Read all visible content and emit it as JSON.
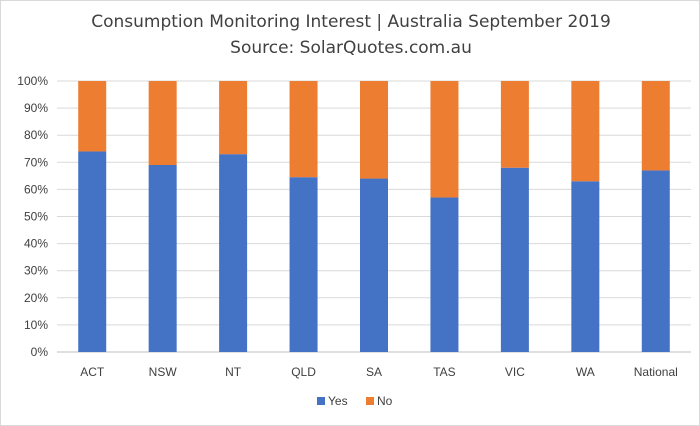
{
  "chart_data": {
    "type": "bar",
    "stacked": true,
    "title": "Consumption Monitoring Interest | Australia September 2019",
    "subtitle": "Source: SolarQuotes.com.au",
    "categories": [
      "ACT",
      "NSW",
      "NT",
      "QLD",
      "SA",
      "TAS",
      "VIC",
      "WA",
      "National"
    ],
    "series": [
      {
        "name": "Yes",
        "color": "#4472c4",
        "values": [
          74,
          69,
          73,
          64.5,
          64,
          57,
          68,
          63,
          67
        ]
      },
      {
        "name": "No",
        "color": "#ed7d31",
        "values": [
          26,
          31,
          27,
          35.5,
          36,
          43,
          32,
          37,
          33
        ]
      }
    ],
    "ylim": [
      0,
      100
    ],
    "yticks": [
      "0%",
      "10%",
      "20%",
      "30%",
      "40%",
      "50%",
      "60%",
      "70%",
      "80%",
      "90%",
      "100%"
    ],
    "xlabel": "",
    "ylabel": "",
    "grid": true,
    "legend_position": "bottom"
  }
}
